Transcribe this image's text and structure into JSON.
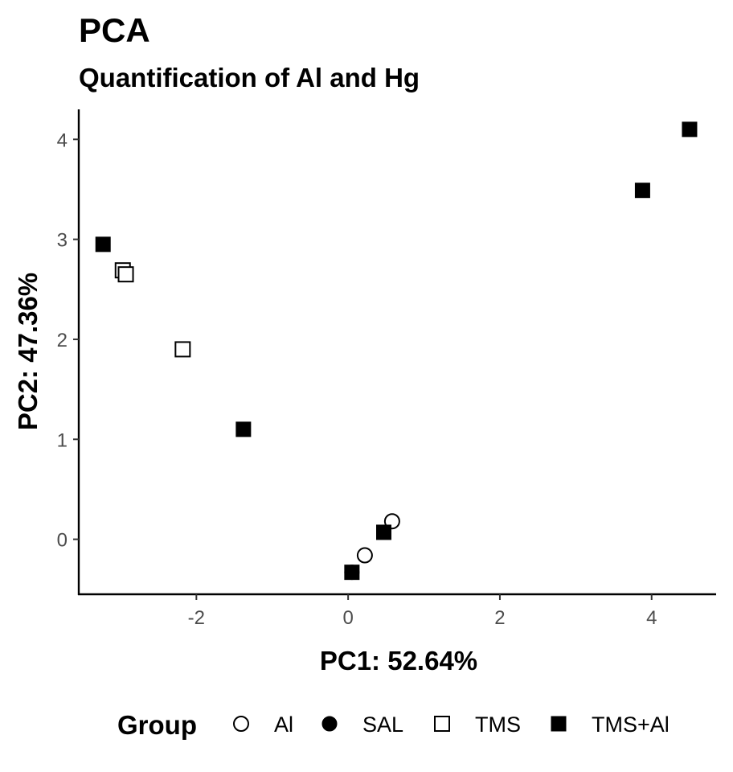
{
  "chart_data": {
    "type": "scatter",
    "title": "PCA",
    "subtitle": "Quantification of Al and Hg",
    "xlabel": "PC1: 52.64%",
    "ylabel": "PC2: 47.36%",
    "xlim": [
      -3.55,
      4.85
    ],
    "ylim": [
      -0.55,
      4.3
    ],
    "xticks": [
      -2,
      0,
      2,
      4
    ],
    "yticks": [
      0,
      1,
      2,
      3,
      4
    ],
    "grid": false,
    "legend": {
      "title": "Group",
      "position": "bottom"
    },
    "series": [
      {
        "name": "Al",
        "marker": "open-circle",
        "color": "#000000",
        "points": [
          [
            0.58,
            0.18
          ],
          [
            0.22,
            -0.16
          ]
        ]
      },
      {
        "name": "SAL",
        "marker": "filled-circle",
        "color": "#000000",
        "points": [
          [
            0.05,
            -0.33
          ]
        ]
      },
      {
        "name": "TMS",
        "marker": "open-square",
        "color": "#000000",
        "points": [
          [
            -2.97,
            2.69
          ],
          [
            -2.93,
            2.65
          ],
          [
            -2.18,
            1.9
          ]
        ]
      },
      {
        "name": "TMS+Al",
        "marker": "filled-square",
        "color": "#000000",
        "points": [
          [
            4.5,
            4.1
          ],
          [
            3.88,
            3.49
          ],
          [
            -3.23,
            2.95
          ],
          [
            -1.38,
            1.1
          ],
          [
            0.47,
            0.07
          ],
          [
            0.05,
            -0.33
          ]
        ]
      }
    ]
  }
}
